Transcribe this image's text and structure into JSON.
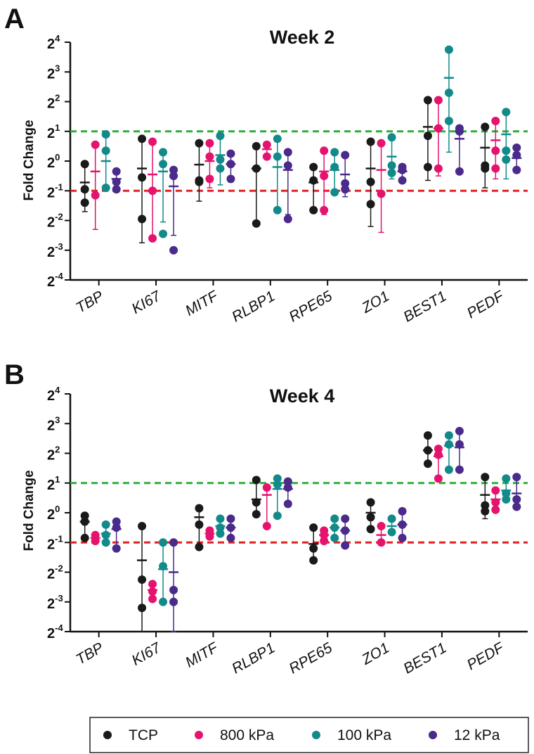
{
  "figure": {
    "legend": [
      {
        "label": "TCP",
        "color": "#1a1a1a"
      },
      {
        "label": "800 kPa",
        "color": "#e5136e"
      },
      {
        "label": "100 kPa",
        "color": "#138a8a"
      },
      {
        "label": "12 kPa",
        "color": "#4a2a8a"
      }
    ]
  },
  "chart_data": [
    {
      "panel": "A",
      "type": "scatter",
      "title": "Week 2",
      "ylabel": "Fold Change",
      "xlabel": "",
      "yscale": "log2",
      "ylim_exponent": [
        -4,
        4
      ],
      "ytick_base": "2",
      "ytick_exponents": [
        "4",
        "3",
        "2",
        "1",
        "0",
        "-1",
        "-2",
        "-3",
        "-4"
      ],
      "reference_lines": [
        {
          "exponent": 1,
          "color": "#2fae3a",
          "style": "dashed"
        },
        {
          "exponent": -1,
          "color": "#e02020",
          "style": "dashed"
        }
      ],
      "categories": [
        "TBP",
        "KI67",
        "MITF",
        "RLBP1",
        "RPE65",
        "ZO1",
        "BEST1",
        "PEDF"
      ],
      "series": [
        {
          "name": "TCP",
          "points_log2": [
            [
              -0.1,
              -0.95,
              -1.4
            ],
            [
              0.75,
              -0.55,
              -1.95
            ],
            [
              0.6,
              -0.65,
              -0.7
            ],
            [
              0.5,
              -0.25,
              -2.1
            ],
            [
              -0.65,
              -0.2,
              -1.65
            ],
            [
              0.65,
              -0.7,
              -1.45
            ],
            [
              2.05,
              0.85,
              -0.2
            ],
            [
              1.15,
              -0.15,
              -0.25
            ]
          ],
          "mean_log2": [
            -0.72,
            -0.25,
            -0.12,
            -0.25,
            -0.72,
            -0.25,
            1.15,
            0.45
          ],
          "err_log2": [
            [
              -1.7,
              -0.1
            ],
            [
              -2.75,
              0.75
            ],
            [
              -1.35,
              0.6
            ],
            [
              -2.1,
              0.5
            ],
            [
              -1.65,
              -0.2
            ],
            [
              -2.2,
              0.65
            ],
            [
              -0.65,
              2.05
            ],
            [
              -0.9,
              1.15
            ]
          ]
        },
        {
          "name": "800 kPa",
          "points_log2": [
            [
              0.55,
              -1.15
            ],
            [
              0.65,
              -1.0,
              -2.6
            ],
            [
              0.6,
              0.15,
              -0.6
            ],
            [
              0.55,
              0.15
            ],
            [
              0.35,
              -0.5,
              -1.65
            ],
            [
              0.6,
              -1.1
            ],
            [
              2.05,
              1.1,
              -0.25
            ],
            [
              1.35,
              0.35,
              -0.25
            ]
          ],
          "mean_log2": [
            -0.35,
            -0.45,
            0.0,
            0.4,
            -0.35,
            -0.3,
            1.1,
            0.7
          ],
          "err_log2": [
            [
              -2.3,
              0.55
            ],
            [
              -2.6,
              0.65
            ],
            [
              -0.9,
              0.6
            ],
            [
              0.15,
              0.55
            ],
            [
              -1.8,
              0.35
            ],
            [
              -2.4,
              0.6
            ],
            [
              -0.5,
              2.05
            ],
            [
              -0.6,
              1.35
            ]
          ]
        },
        {
          "name": "100 kPa",
          "points_log2": [
            [
              0.9,
              0.35,
              -0.9
            ],
            [
              0.3,
              -0.1,
              -2.45
            ],
            [
              0.85,
              0.05,
              -0.25
            ],
            [
              0.75,
              0.15,
              -1.65
            ],
            [
              0.3,
              -0.2,
              -1.05
            ],
            [
              0.8,
              -0.15,
              -0.4
            ],
            [
              3.75,
              2.3,
              1.35
            ],
            [
              1.65,
              0.35,
              0.05
            ]
          ],
          "mean_log2": [
            0.0,
            -0.35,
            0.2,
            -0.2,
            -0.3,
            0.15,
            2.8,
            0.9
          ],
          "err_log2": [
            [
              -0.9,
              0.9
            ],
            [
              -2.05,
              0.3
            ],
            [
              -0.8,
              0.85
            ],
            [
              -1.6,
              0.75
            ],
            [
              -1.05,
              0.3
            ],
            [
              -0.6,
              0.8
            ],
            [
              0.3,
              3.75
            ],
            [
              -0.6,
              1.65
            ]
          ]
        },
        {
          "name": "12 kPa",
          "points_log2": [
            [
              -0.35,
              -0.7,
              -0.95
            ],
            [
              -0.3,
              -0.5,
              -3.0
            ],
            [
              0.25,
              -0.1,
              -0.6
            ],
            [
              0.3,
              -0.15,
              -1.95
            ],
            [
              0.2,
              -0.75,
              -0.95
            ],
            [
              -0.2,
              -0.3,
              -0.65
            ],
            [
              1.1,
              1.0,
              -0.35
            ],
            [
              0.45,
              0.2,
              -0.3
            ]
          ],
          "mean_log2": [
            -0.6,
            -0.85,
            -0.1,
            -0.3,
            -0.45,
            -0.35,
            0.75,
            0.1
          ],
          "err_log2": [
            [
              -0.95,
              -0.35
            ],
            [
              -2.5,
              -0.2
            ],
            [
              -0.7,
              0.25
            ],
            [
              -1.8,
              0.3
            ],
            [
              -1.2,
              0.2
            ],
            [
              -0.7,
              -0.1
            ],
            [
              -0.3,
              1.1
            ],
            [
              -0.4,
              0.45
            ]
          ]
        }
      ]
    },
    {
      "panel": "B",
      "type": "scatter",
      "title": "Week 4",
      "ylabel": "Fold Change",
      "xlabel": "",
      "yscale": "log2",
      "ylim_exponent": [
        -4,
        4
      ],
      "ytick_base": "2",
      "ytick_exponents": [
        "4",
        "3",
        "2",
        "1",
        "0",
        "-1",
        "-2",
        "-3",
        "-4"
      ],
      "reference_lines": [
        {
          "exponent": 1,
          "color": "#2fae3a",
          "style": "dashed"
        },
        {
          "exponent": -1,
          "color": "#e02020",
          "style": "dashed"
        }
      ],
      "categories": [
        "TBP",
        "KI67",
        "MITF",
        "RLBP1",
        "RPE65",
        "ZO1",
        "BEST1",
        "PEDF"
      ],
      "series": [
        {
          "name": "TCP",
          "points_log2": [
            [
              -0.1,
              -0.3,
              -0.85
            ],
            [
              -0.45,
              -2.25,
              -3.2
            ],
            [
              0.15,
              -0.4,
              -1.15
            ],
            [
              1.1,
              0.35,
              -0.05
            ],
            [
              -0.5,
              -1.2,
              -1.6
            ],
            [
              0.35,
              -0.15,
              -0.55
            ],
            [
              2.6,
              2.1,
              1.65
            ],
            [
              1.2,
              0.25,
              0.05
            ]
          ],
          "mean_log2": [
            -0.3,
            -1.6,
            -0.15,
            0.45,
            -1.05,
            0.0,
            2.1,
            0.6
          ],
          "err_log2": [
            [
              -0.85,
              -0.1
            ],
            [
              -4.0,
              -0.45
            ],
            [
              -1.15,
              0.15
            ],
            [
              -0.05,
              1.1
            ],
            [
              -1.6,
              -0.5
            ],
            [
              -0.55,
              0.35
            ],
            [
              1.65,
              2.6
            ],
            [
              -0.2,
              1.2
            ]
          ]
        },
        {
          "name": "800 kPa",
          "points_log2": [
            [
              -0.75,
              -0.95
            ],
            [
              -2.4,
              -2.65,
              -2.9
            ],
            [
              -0.6,
              -0.8
            ],
            [
              0.85,
              -0.45
            ],
            [
              -0.6,
              -0.75,
              -0.95
            ],
            [
              -0.45,
              -1.0
            ],
            [
              2.15,
              1.95,
              1.15
            ],
            [
              0.75,
              0.35,
              0.1
            ]
          ],
          "mean_log2": [
            -0.85,
            -2.6,
            -0.7,
            0.6,
            -0.75,
            -0.75,
            1.9,
            0.45
          ],
          "err_log2": [
            [
              -0.95,
              -0.75
            ],
            [
              -2.9,
              -2.4
            ],
            [
              -0.8,
              -0.6
            ],
            [
              -0.45,
              0.85
            ],
            [
              -0.95,
              -0.6
            ],
            [
              -1.0,
              -0.45
            ],
            [
              1.15,
              2.15
            ],
            [
              0.1,
              0.75
            ]
          ]
        },
        {
          "name": "100 kPa",
          "points_log2": [
            [
              -0.4,
              -0.75,
              -1.0
            ],
            [
              -1.0,
              -1.8,
              -3.0
            ],
            [
              -0.2,
              -0.5,
              -0.7
            ],
            [
              1.15,
              0.95,
              -0.1
            ],
            [
              -0.2,
              -0.5,
              -0.85
            ],
            [
              -0.2,
              -0.65
            ],
            [
              2.6,
              2.3,
              1.45
            ],
            [
              1.15,
              0.65,
              0.45
            ]
          ],
          "mean_log2": [
            -0.7,
            -1.9,
            -0.45,
            0.8,
            -0.5,
            -0.45,
            2.25,
            0.75
          ],
          "err_log2": [
            [
              -1.0,
              -0.4
            ],
            [
              -3.0,
              -1.0
            ],
            [
              -0.7,
              -0.2
            ],
            [
              -0.1,
              1.15
            ],
            [
              -0.85,
              -0.2
            ],
            [
              -0.65,
              -0.2
            ],
            [
              1.45,
              2.6
            ],
            [
              0.45,
              1.15
            ]
          ]
        },
        {
          "name": "12 kPa",
          "points_log2": [
            [
              -0.3,
              -0.5,
              -1.2
            ],
            [
              -1.0,
              -2.6,
              -3.0
            ],
            [
              -0.2,
              -0.5,
              -0.85
            ],
            [
              1.05,
              0.85,
              0.3
            ],
            [
              -0.2,
              -0.6,
              -1.1
            ],
            [
              0.05,
              -0.4,
              -0.85
            ],
            [
              2.75,
              2.3,
              1.45
            ],
            [
              1.2,
              0.45,
              0.2
            ]
          ],
          "mean_log2": [
            -0.55,
            -2.0,
            -0.5,
            0.8,
            -0.6,
            -0.4,
            2.2,
            0.65
          ],
          "err_log2": [
            [
              -1.2,
              -0.3
            ],
            [
              -4.0,
              -1.0
            ],
            [
              -0.85,
              -0.2
            ],
            [
              0.3,
              1.05
            ],
            [
              -1.1,
              -0.2
            ],
            [
              -0.85,
              0.05
            ],
            [
              1.45,
              2.75
            ],
            [
              0.2,
              1.2
            ]
          ]
        }
      ]
    }
  ]
}
